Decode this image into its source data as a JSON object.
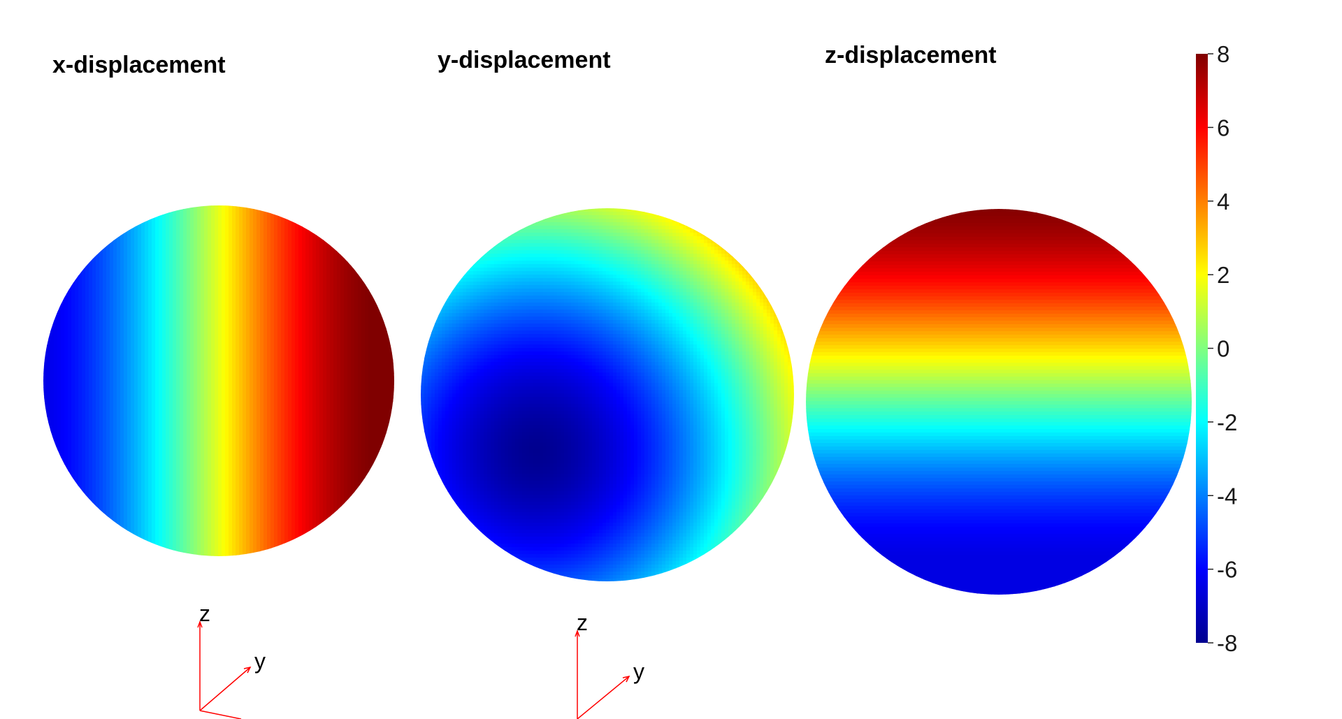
{
  "chart_data": [
    {
      "type": "heatmap",
      "title": "x-displacement",
      "surface": "sphere",
      "colormap": "jet",
      "field": "displacement along x",
      "min_value": -6.5,
      "max_value": 8,
      "min_region": "left edge",
      "max_region": "right side, slightly below center"
    },
    {
      "type": "heatmap",
      "title": "y-displacement",
      "surface": "sphere",
      "colormap": "jet",
      "field": "displacement along y",
      "min_value": -8,
      "max_value": 4,
      "min_region": "lower-left",
      "max_region": "upper-right rim"
    },
    {
      "type": "heatmap",
      "title": "z-displacement",
      "surface": "sphere",
      "colormap": "jet",
      "field": "displacement along z",
      "min_value": -6.5,
      "max_value": 8,
      "min_region": "bottom",
      "max_region": "top"
    }
  ],
  "colorbar": {
    "colormap": "jet",
    "range": [
      -8,
      8
    ],
    "ticks": [
      "8",
      "6",
      "4",
      "2",
      "0",
      "-2",
      "-4",
      "-6",
      "-8"
    ]
  },
  "axes_triads": [
    {
      "labels": {
        "z": "z",
        "y": "y"
      }
    },
    {
      "labels": {
        "z": "z",
        "y": "y"
      }
    }
  ],
  "colors": {
    "triad_axis": "#ff0000",
    "jet_stops": [
      "#00008f",
      "#0000ff",
      "#0080ff",
      "#00ffff",
      "#80ff80",
      "#ffff00",
      "#ff8000",
      "#ff0000",
      "#800000"
    ]
  }
}
